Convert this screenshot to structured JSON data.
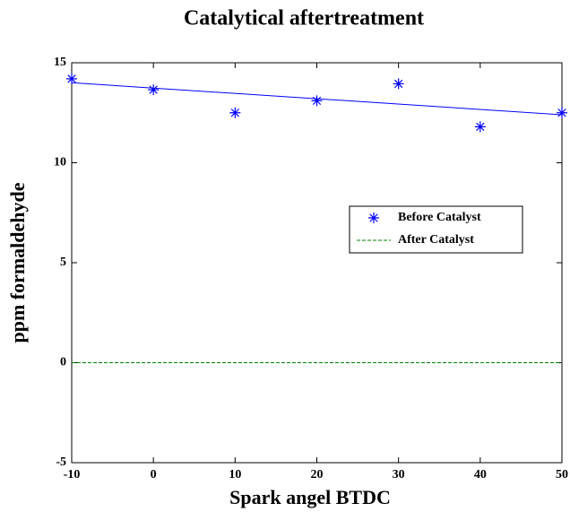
{
  "chart_data": {
    "type": "line",
    "title": "Catalytical aftertreatment",
    "xlabel": "Spark angel BTDC",
    "ylabel": "ppm formaldehyde",
    "xlim": [
      -10,
      50
    ],
    "xticks": [
      -10,
      0,
      10,
      20,
      30,
      40,
      50
    ],
    "ylim": [
      -5,
      15
    ],
    "yticks": [
      -5,
      0,
      5,
      10,
      15
    ],
    "legend": "center right",
    "series": [
      {
        "name": "Before Catalyst",
        "color": "#0000ff",
        "marker": "*",
        "linestyle": "none",
        "x": [
          -10,
          0,
          10,
          20,
          30,
          40,
          50
        ],
        "values": [
          14.2,
          13.65,
          12.5,
          13.1,
          13.95,
          11.8,
          12.5
        ]
      },
      {
        "color": "#0000ff",
        "marker": "none",
        "linestyle": "solid",
        "x": [
          -10,
          50
        ],
        "values": [
          14.0,
          12.4
        ]
      },
      {
        "name": "After Catalyst",
        "color": "#008000",
        "marker": "none",
        "linestyle": "dashed",
        "x": [
          -10,
          50
        ],
        "values": [
          0,
          0
        ]
      }
    ]
  }
}
